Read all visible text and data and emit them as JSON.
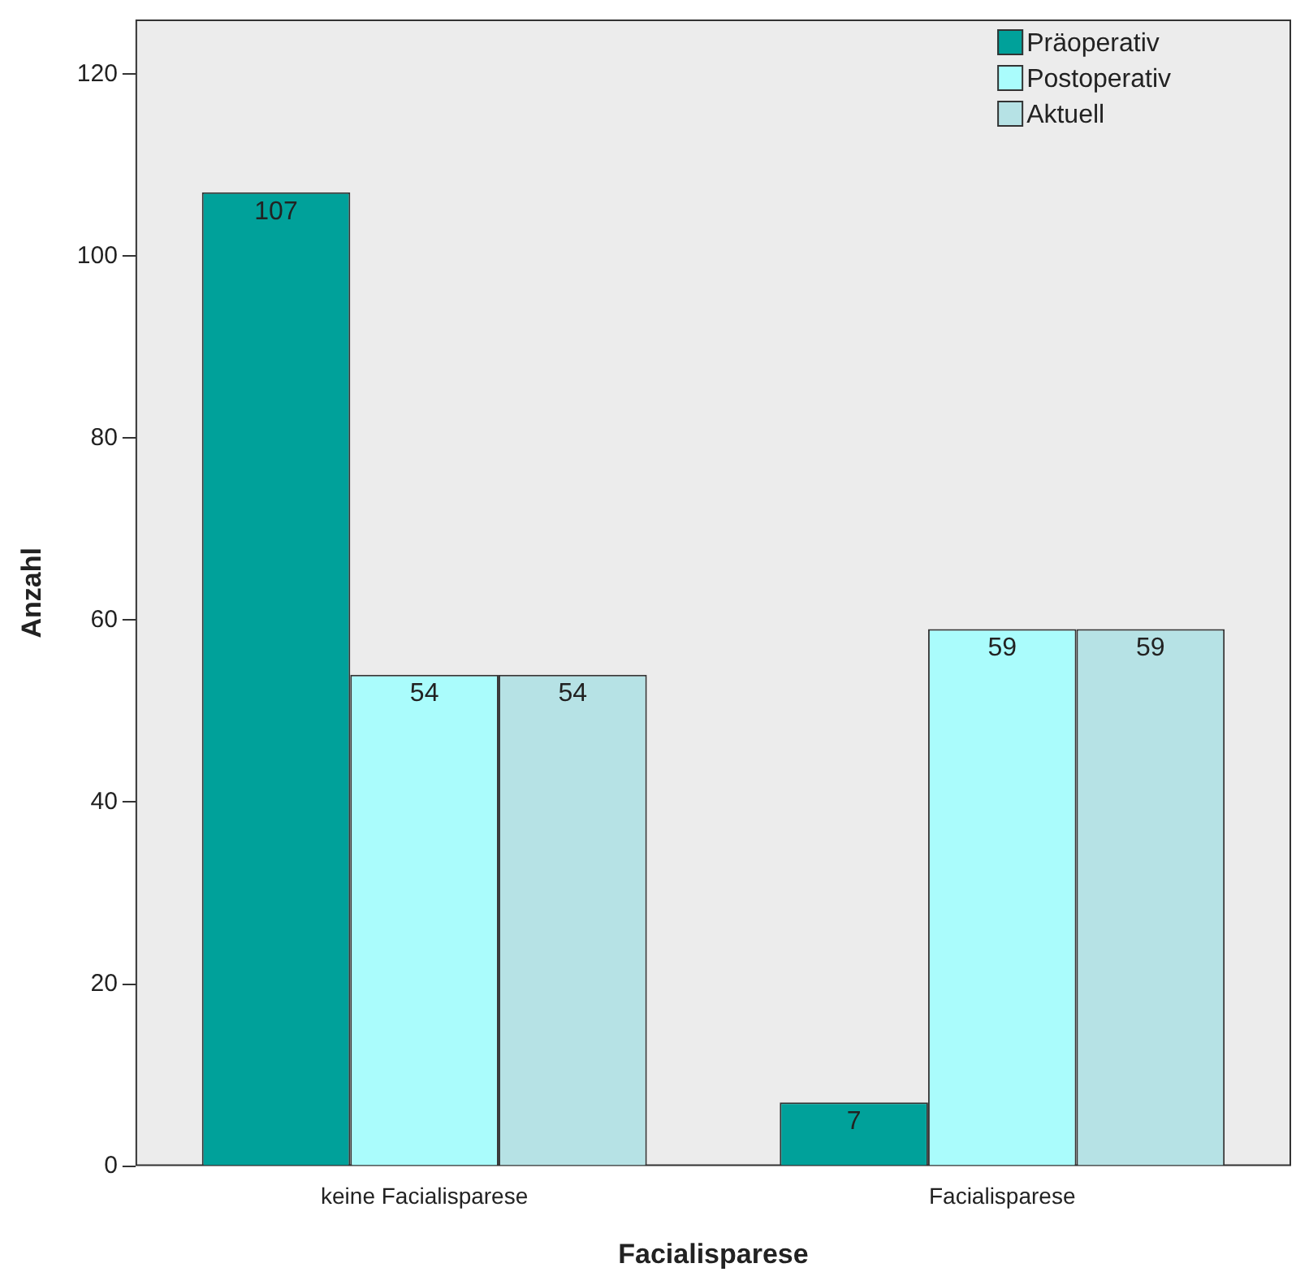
{
  "chart_data": {
    "type": "bar",
    "xlabel": "Facialisparese",
    "ylabel": "Anzahl",
    "categories": [
      "keine Facialisparese",
      "Facialisparese"
    ],
    "series": [
      {
        "name": "Präoperativ",
        "color": "#00a19a",
        "values": [
          107,
          7
        ]
      },
      {
        "name": "Postoperativ",
        "color": "#aafcfc",
        "values": [
          54,
          59
        ]
      },
      {
        "name": "Aktuell",
        "color": "#b6e2e5",
        "values": [
          54,
          59
        ]
      }
    ],
    "ylim": [
      0,
      126
    ],
    "yticks": [
      0,
      20,
      40,
      60,
      80,
      100,
      120
    ],
    "grid": false,
    "legend": "top right",
    "data_labels": true
  }
}
